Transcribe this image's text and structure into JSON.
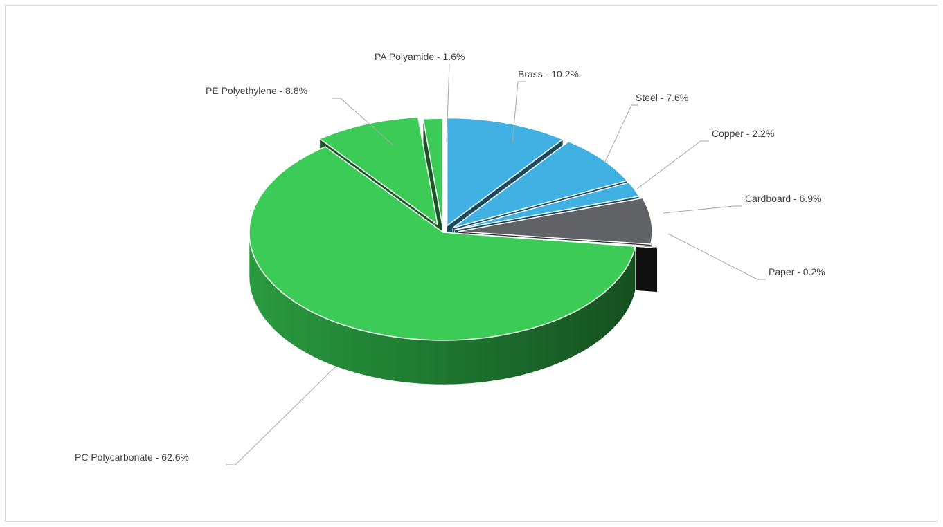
{
  "chart_data": {
    "type": "pie",
    "style": "3d-exploded",
    "title": "",
    "unit": "%",
    "slices": [
      {
        "label": "Brass - 10.2%",
        "name": "Brass",
        "value": 10.2,
        "color": "#41b0e3"
      },
      {
        "label": "Steel - 7.6%",
        "name": "Steel",
        "value": 7.6,
        "color": "#41b0e3"
      },
      {
        "label": "Copper - 2.2%",
        "name": "Copper",
        "value": 2.2,
        "color": "#41b0e3"
      },
      {
        "label": "Cardboard - 6.9%",
        "name": "Cardboard",
        "value": 6.9,
        "color": "#606266"
      },
      {
        "label": "Paper - 0.2%",
        "name": "Paper",
        "value": 0.2,
        "color": "#252525"
      },
      {
        "label": "PC Polycarbonate - 62.6%",
        "name": "PC Polycarbonate",
        "value": 62.6,
        "color": "#3dcb58"
      },
      {
        "label": "PE Polyethylene - 8.8%",
        "name": "PE Polyethylene",
        "value": 8.8,
        "color": "#3dcb58"
      },
      {
        "label": "PA Polyamide - 1.6%",
        "name": "PA Polyamide",
        "value": 1.6,
        "color": "#3dcb58"
      }
    ],
    "legend": "none",
    "data_labels": "outside-with-leader-lines"
  }
}
